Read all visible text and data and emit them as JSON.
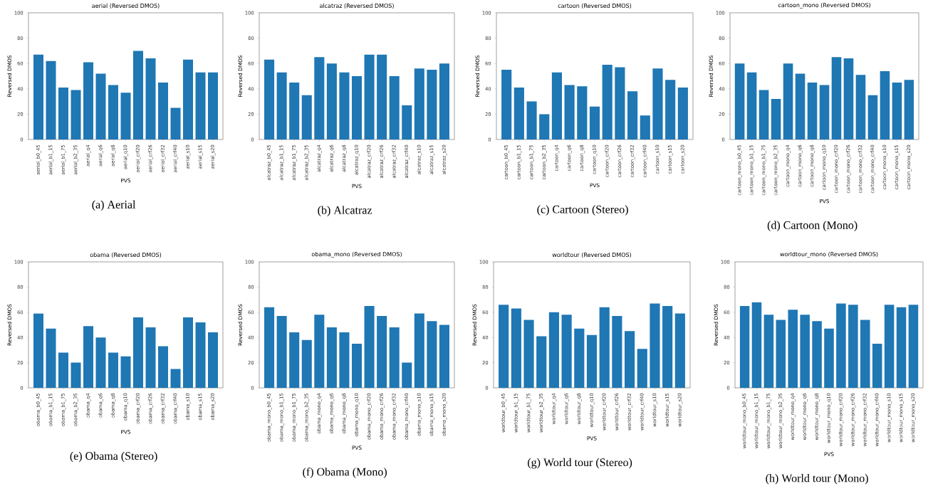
{
  "chart_data": [
    {
      "type": "bar",
      "title": "aerial (Reversed DMOS)",
      "xlabel": "PVS",
      "ylabel": "Reversed DMOS",
      "color": "#1f77b4",
      "ylim": [
        0,
        100
      ],
      "yticks": [
        0,
        20,
        40,
        60,
        80,
        100
      ],
      "annotations": [
        "(a) Aerial"
      ],
      "categories": [
        "aerial_b0_45",
        "aerial_b1_15",
        "aerial_b1_75",
        "aerial_b2_35",
        "aerial_q4",
        "aerial_q6",
        "aerial_q8",
        "aerial_q10",
        "aerial_crf20",
        "aerial_crf26",
        "aerial_crf32",
        "aerial_crf40",
        "aerial_s10",
        "aerial_s15",
        "aerial_s20"
      ],
      "values": [
        67,
        62,
        41,
        39,
        61,
        52,
        43,
        37,
        70,
        64,
        45,
        25,
        63,
        53,
        53
      ]
    },
    {
      "type": "bar",
      "title": "alcatraz (Reversed DMOS)",
      "xlabel": "PVS",
      "ylabel": "Reversed DMOS",
      "color": "#1f77b4",
      "ylim": [
        0,
        100
      ],
      "yticks": [
        0,
        20,
        40,
        60,
        80,
        100
      ],
      "annotations": [
        "(b) Alcatraz"
      ],
      "categories": [
        "alcatraz_b0_45",
        "alcatraz_b1_15",
        "alcatraz_b1_75",
        "alcatraz_b2_35",
        "alcatraz_q4",
        "alcatraz_q6",
        "alcatraz_q8",
        "alcatraz_q10",
        "alcatraz_crf20",
        "alcatraz_crf26",
        "alcatraz_crf32",
        "alcatraz_crf40",
        "alcatraz_s10",
        "alcatraz_s15",
        "alcatraz_s20"
      ],
      "values": [
        63,
        53,
        45,
        35,
        65,
        60,
        53,
        50,
        67,
        67,
        50,
        27,
        56,
        55,
        60
      ]
    },
    {
      "type": "bar",
      "title": "cartoon (Reversed DMOS)",
      "xlabel": "PVS",
      "ylabel": "Reversed DMOS",
      "color": "#1f77b4",
      "ylim": [
        0,
        100
      ],
      "yticks": [
        0,
        20,
        40,
        60,
        80,
        100
      ],
      "annotations": [
        "(c) Cartoon (Stereo)"
      ],
      "categories": [
        "cartoon_b0_45",
        "cartoon_b1_15",
        "cartoon_b1_75",
        "cartoon_b2_35",
        "cartoon_q4",
        "cartoon_q6",
        "cartoon_q8",
        "cartoon_q10",
        "cartoon_crf20",
        "cartoon_crf26",
        "cartoon_crf32",
        "cartoon_crf40",
        "cartoon_s10",
        "cartoon_s15",
        "cartoon_s20"
      ],
      "values": [
        55,
        41,
        30,
        20,
        53,
        43,
        42,
        26,
        59,
        57,
        38,
        19,
        56,
        47,
        41
      ]
    },
    {
      "type": "bar",
      "title": "cartoon_mono (Reversed DMOS)",
      "xlabel": "PVS",
      "ylabel": "Reversed DMOS",
      "color": "#1f77b4",
      "ylim": [
        0,
        100
      ],
      "yticks": [
        0,
        20,
        40,
        60,
        80,
        100
      ],
      "annotations": [
        "(d) Cartoon (Mono)"
      ],
      "categories": [
        "cartoon_mono_b0_45",
        "cartoon_mono_b1_15",
        "cartoon_mono_b1_75",
        "cartoon_mono_b2_35",
        "cartoon_mono_q4",
        "cartoon_mono_q6",
        "cartoon_mono_q8",
        "cartoon_mono_q10",
        "cartoon_mono_crf20",
        "cartoon_mono_crf26",
        "cartoon_mono_crf32",
        "cartoon_mono_crf40",
        "cartoon_mono_s10",
        "cartoon_mono_s15",
        "cartoon_mono_s20"
      ],
      "values": [
        60,
        53,
        39,
        32,
        60,
        52,
        45,
        43,
        65,
        64,
        51,
        35,
        54,
        45,
        47
      ]
    },
    {
      "type": "bar",
      "title": "obama (Reversed DMOS)",
      "xlabel": "PVS",
      "ylabel": "Reversed DMOS",
      "color": "#1f77b4",
      "ylim": [
        0,
        100
      ],
      "yticks": [
        0,
        20,
        40,
        60,
        80,
        100
      ],
      "annotations": [
        "(e) Obama (Stereo)"
      ],
      "categories": [
        "obama_b0_45",
        "obama_b1_15",
        "obama_b1_75",
        "obama_b2_35",
        "obama_q4",
        "obama_q6",
        "obama_q8",
        "obama_q10",
        "obama_crf20",
        "obama_crf26",
        "obama_crf32",
        "obama_crf40",
        "obama_s10",
        "obama_s15",
        "obama_s20"
      ],
      "values": [
        59,
        47,
        28,
        20,
        49,
        40,
        28,
        25,
        56,
        48,
        33,
        15,
        56,
        52,
        44
      ]
    },
    {
      "type": "bar",
      "title": "obama_mono (Reversed DMOS)",
      "xlabel": "PVS",
      "ylabel": "Reversed DMOS",
      "color": "#1f77b4",
      "ylim": [
        0,
        100
      ],
      "yticks": [
        0,
        20,
        40,
        60,
        80,
        100
      ],
      "annotations": [
        "(f) Obama (Mono)"
      ],
      "categories": [
        "obama_mono_b0_45",
        "obama_mono_b1_15",
        "obama_mono_b1_75",
        "obama_mono_b2_35",
        "obama_mono_q4",
        "obama_mono_q6",
        "obama_mono_q8",
        "obama_mono_q10",
        "obama_mono_crf20",
        "obama_mono_crf26",
        "obama_mono_crf32",
        "obama_mono_crf40",
        "obama_mono_s10",
        "obama_mono_s15",
        "obama_mono_s20"
      ],
      "values": [
        64,
        57,
        44,
        38,
        58,
        48,
        44,
        35,
        65,
        57,
        48,
        20,
        59,
        53,
        50
      ]
    },
    {
      "type": "bar",
      "title": "worldtour (Reversed DMOS)",
      "xlabel": "PVS",
      "ylabel": "Reversed DMOS",
      "color": "#1f77b4",
      "ylim": [
        0,
        100
      ],
      "yticks": [
        0,
        20,
        40,
        60,
        80,
        100
      ],
      "annotations": [
        "(g) World tour (Stereo)"
      ],
      "categories": [
        "worldtour_b0_45",
        "worldtour_b1_15",
        "worldtour_b1_75",
        "worldtour_b2_35",
        "worldtour_q4",
        "worldtour_q6",
        "worldtour_q8",
        "worldtour_q10",
        "worldtour_crf20",
        "worldtour_crf26",
        "worldtour_crf32",
        "worldtour_crf40",
        "worldtour_s10",
        "worldtour_s15",
        "worldtour_s20"
      ],
      "values": [
        66,
        63,
        54,
        41,
        60,
        58,
        47,
        42,
        64,
        57,
        45,
        31,
        67,
        65,
        59
      ]
    },
    {
      "type": "bar",
      "title": "worldtour_mono (Reversed DMOS)",
      "xlabel": "PVS",
      "ylabel": "Reversed DMOS",
      "color": "#1f77b4",
      "ylim": [
        0,
        100
      ],
      "yticks": [
        0,
        20,
        40,
        60,
        80,
        100
      ],
      "annotations": [
        "(h) World tour (Mono)"
      ],
      "categories": [
        "worldtour_mono_b0_45",
        "worldtour_mono_b1_15",
        "worldtour_mono_b1_75",
        "worldtour_mono_b2_35",
        "worldtour_mono_q4",
        "worldtour_mono_q6",
        "worldtour_mono_q8",
        "worldtour_mono_q10",
        "worldtour_mono_crf20",
        "worldtour_mono_crf26",
        "worldtour_mono_crf32",
        "worldtour_mono_crf40",
        "worldtour_mono_s10",
        "worldtour_mono_s15",
        "worldtour_mono_s20"
      ],
      "values": [
        65,
        68,
        58,
        54,
        62,
        58,
        53,
        47,
        67,
        66,
        54,
        35,
        66,
        64,
        66
      ]
    }
  ]
}
